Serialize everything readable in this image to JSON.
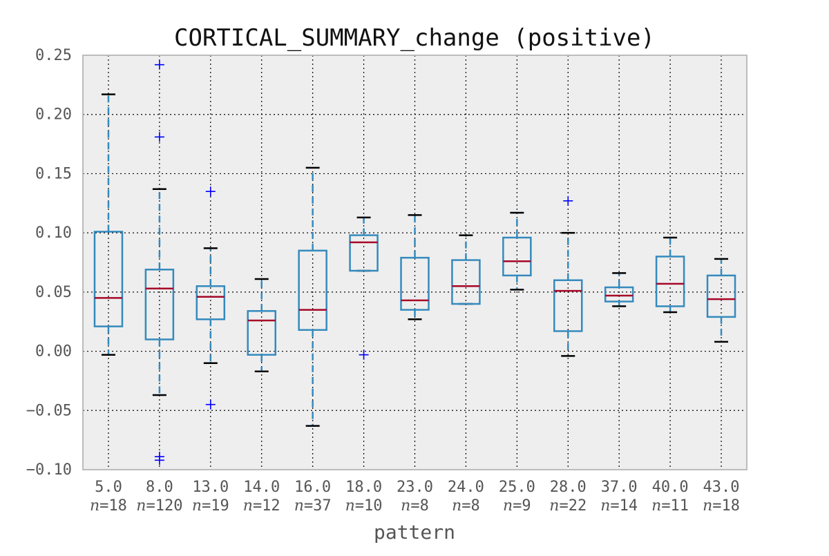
{
  "chart_data": {
    "type": "box",
    "title": "CORTICAL_SUMMARY_change (positive)",
    "xlabel": "pattern",
    "ylabel": "",
    "ylim": [
      -0.1,
      0.25
    ],
    "yticks": [
      "0.25",
      "0.20",
      "0.15",
      "0.10",
      "0.05",
      "0.00",
      "−0.05",
      "−0.10"
    ],
    "ytick_values": [
      0.25,
      0.2,
      0.15,
      0.1,
      0.05,
      0.0,
      -0.05,
      -0.1
    ],
    "grid": true,
    "categories": [
      "5.0",
      "8.0",
      "13.0",
      "14.0",
      "16.0",
      "18.0",
      "23.0",
      "24.0",
      "25.0",
      "28.0",
      "37.0",
      "40.0",
      "43.0"
    ],
    "n_labels": [
      "n=18",
      "n=120",
      "n=19",
      "n=12",
      "n=37",
      "n=10",
      "n=8",
      "n=8",
      "n=9",
      "n=22",
      "n=14",
      "n=11",
      "n=18"
    ],
    "boxes": [
      {
        "whislo": -0.003,
        "q1": 0.021,
        "med": 0.045,
        "q3": 0.101,
        "whishi": 0.217,
        "fliers": []
      },
      {
        "whislo": -0.037,
        "q1": 0.01,
        "med": 0.053,
        "q3": 0.069,
        "whishi": 0.137,
        "fliers": [
          0.242,
          0.181,
          -0.089,
          -0.092
        ]
      },
      {
        "whislo": -0.01,
        "q1": 0.027,
        "med": 0.046,
        "q3": 0.055,
        "whishi": 0.087,
        "fliers": [
          0.135,
          -0.045
        ]
      },
      {
        "whislo": -0.017,
        "q1": -0.003,
        "med": 0.026,
        "q3": 0.034,
        "whishi": 0.061,
        "fliers": []
      },
      {
        "whislo": -0.063,
        "q1": 0.018,
        "med": 0.035,
        "q3": 0.085,
        "whishi": 0.155,
        "fliers": []
      },
      {
        "whislo": 0.068,
        "q1": 0.068,
        "med": 0.092,
        "q3": 0.098,
        "whishi": 0.113,
        "fliers": [
          -0.003
        ]
      },
      {
        "whislo": 0.027,
        "q1": 0.035,
        "med": 0.043,
        "q3": 0.079,
        "whishi": 0.115,
        "fliers": []
      },
      {
        "whislo": 0.04,
        "q1": 0.04,
        "med": 0.055,
        "q3": 0.077,
        "whishi": 0.098,
        "fliers": []
      },
      {
        "whislo": 0.052,
        "q1": 0.064,
        "med": 0.076,
        "q3": 0.096,
        "whishi": 0.117,
        "fliers": []
      },
      {
        "whislo": -0.004,
        "q1": 0.017,
        "med": 0.051,
        "q3": 0.06,
        "whishi": 0.1,
        "fliers": [
          0.127
        ]
      },
      {
        "whislo": 0.038,
        "q1": 0.042,
        "med": 0.047,
        "q3": 0.054,
        "whishi": 0.066,
        "fliers": []
      },
      {
        "whislo": 0.033,
        "q1": 0.038,
        "med": 0.057,
        "q3": 0.08,
        "whishi": 0.096,
        "fliers": []
      },
      {
        "whislo": 0.008,
        "q1": 0.029,
        "med": 0.044,
        "q3": 0.064,
        "whishi": 0.078,
        "fliers": []
      }
    ],
    "colors": {
      "plot_background": "#eeeeee",
      "axes_border": "#bcbcbc",
      "grid": "#000000",
      "box": "#348abd",
      "median": "#a60628",
      "cap": "#000000",
      "flier": "#0000ff"
    }
  }
}
